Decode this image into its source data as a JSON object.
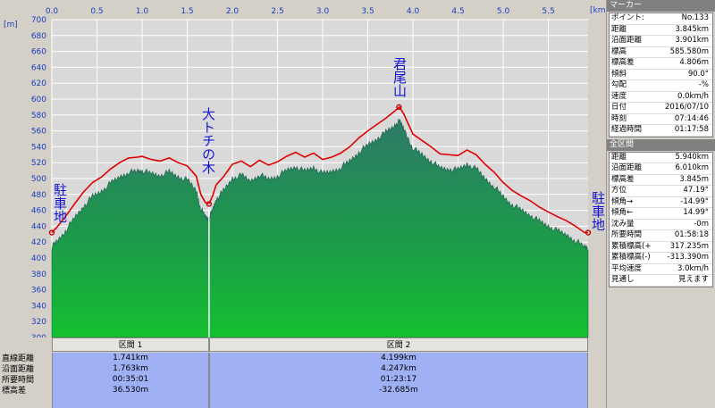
{
  "chart": {
    "y_unit": "[m]",
    "x_unit": "[km]",
    "x_ticks": [
      "0.0",
      "0.5",
      "1.0",
      "1.5",
      "2.0",
      "2.5",
      "3.0",
      "3.5",
      "4.0",
      "4.5",
      "5.0",
      "5.5"
    ],
    "y_ticks": [
      "700",
      "680",
      "660",
      "640",
      "620",
      "600",
      "580",
      "560",
      "540",
      "520",
      "500",
      "480",
      "460",
      "440",
      "420",
      "400",
      "380",
      "360",
      "340",
      "320",
      "300"
    ],
    "annotations": {
      "start": "駐車地",
      "tochi": "大トチの木",
      "summit": "君尾山",
      "end": "駐車地"
    },
    "colors": {
      "route": "#e00000",
      "terrain_top": "#2f7f66",
      "terrain_bottom": "#16b838",
      "bg": "#d8d8d8"
    }
  },
  "chart_data": {
    "type": "area",
    "xlabel": "[km]",
    "ylabel": "[m]",
    "xlim": [
      0,
      5.94
    ],
    "ylim": [
      300,
      700
    ],
    "series": [
      {
        "x": [
          0.0,
          0.05,
          0.15,
          0.25,
          0.35,
          0.45,
          0.55,
          0.65,
          0.75,
          0.85,
          0.95,
          1.0,
          1.1,
          1.2,
          1.3,
          1.4,
          1.5,
          1.6,
          1.65,
          1.7,
          1.74,
          1.78,
          1.82,
          1.9,
          2.0,
          2.1,
          2.2,
          2.3,
          2.4,
          2.5,
          2.6,
          2.7,
          2.8,
          2.9,
          3.0,
          3.1,
          3.2,
          3.3,
          3.4,
          3.5,
          3.6,
          3.7,
          3.8,
          3.85,
          3.9,
          4.0,
          4.1,
          4.2,
          4.3,
          4.4,
          4.5,
          4.6,
          4.7,
          4.8,
          4.9,
          5.0,
          5.1,
          5.2,
          5.3,
          5.4,
          5.5,
          5.6,
          5.7,
          5.8,
          5.9,
          5.94
        ],
        "y": [
          432,
          438,
          452,
          468,
          483,
          495,
          502,
          512,
          520,
          526,
          527,
          528,
          524,
          522,
          526,
          520,
          516,
          503,
          480,
          470,
          468,
          478,
          492,
          502,
          518,
          522,
          515,
          523,
          517,
          521,
          528,
          533,
          527,
          532,
          524,
          527,
          532,
          540,
          551,
          560,
          568,
          576,
          585,
          590,
          581,
          556,
          548,
          540,
          531,
          530,
          529,
          536,
          530,
          518,
          508,
          495,
          485,
          478,
          472,
          464,
          458,
          452,
          447,
          440,
          432,
          432
        ]
      }
    ]
  },
  "segments": {
    "row_labels": [
      "直線距離",
      "沿面距離",
      "所要時間",
      "標高差"
    ],
    "items": [
      {
        "title": "区間 1",
        "values": [
          "1.741km",
          "1.763km",
          "00:35:01",
          "36.530m"
        ]
      },
      {
        "title": "区間 2",
        "values": [
          "4.199km",
          "4.247km",
          "01:23:17",
          "-32.685m"
        ]
      }
    ]
  },
  "marker_panel": {
    "title": "マーカー",
    "rows": [
      {
        "k": "ポイント:",
        "v": "No.133"
      },
      {
        "k": "距離",
        "v": "3.845km"
      },
      {
        "k": "沿面距離",
        "v": "3.901km"
      },
      {
        "k": "標高",
        "v": "585.580m"
      },
      {
        "k": "標高差",
        "v": "4.806m"
      },
      {
        "k": "傾斜",
        "v": "90.0°"
      },
      {
        "k": "勾配",
        "v": "-%"
      },
      {
        "k": "速度",
        "v": "0.0km/h"
      },
      {
        "k": "日付",
        "v": "2016/07/10"
      },
      {
        "k": "時刻",
        "v": "07:14:46"
      },
      {
        "k": "経過時間",
        "v": "01:17:58"
      }
    ]
  },
  "total_panel": {
    "title": "全区間",
    "rows": [
      {
        "k": "距離",
        "v": "5.940km"
      },
      {
        "k": "沿面距離",
        "v": "6.010km"
      },
      {
        "k": "標高差",
        "v": "3.845m"
      },
      {
        "k": "方位",
        "v": "47.19°"
      },
      {
        "k": "傾角→",
        "v": "-14.99°"
      },
      {
        "k": "傾角←",
        "v": "14.99°"
      },
      {
        "k": "沈み量",
        "v": "-0m"
      },
      {
        "k": "所要時間",
        "v": "01:58:18"
      },
      {
        "k": "累積標高(+)",
        "v": "317.235m"
      },
      {
        "k": "累積標高(-)",
        "v": "-313.390m"
      },
      {
        "k": "平均速度",
        "v": "3.0km/h"
      },
      {
        "k": "見通し",
        "v": "見えます"
      }
    ]
  }
}
